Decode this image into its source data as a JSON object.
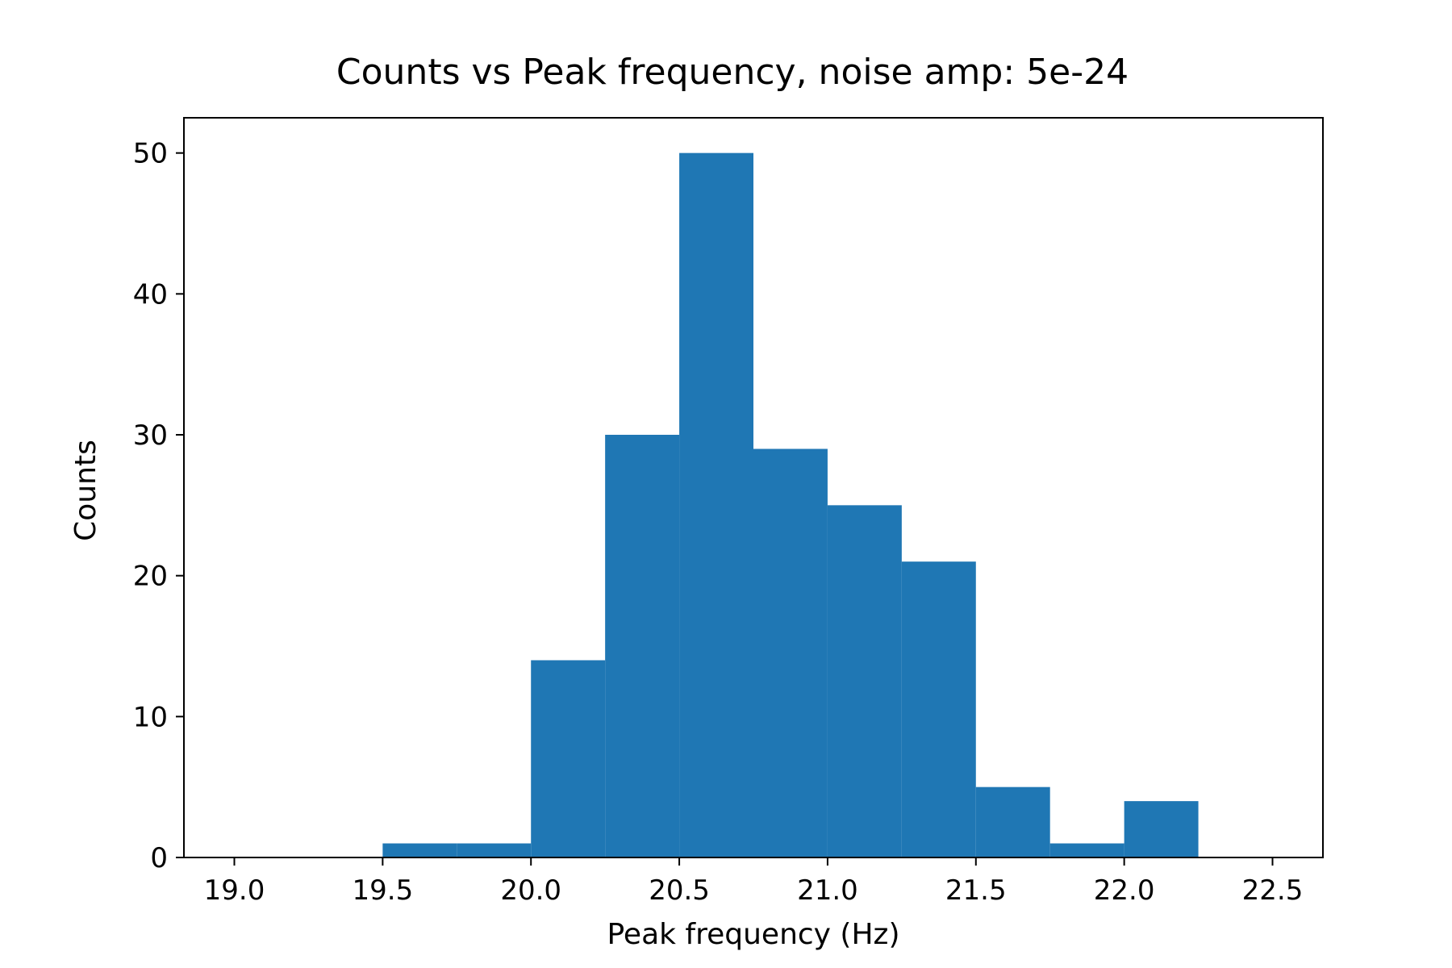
{
  "chart_data": {
    "type": "bar",
    "title": "Counts vs Peak frequency, noise amp: 5e-24",
    "xlabel": "Peak frequency (Hz)",
    "ylabel": "Counts",
    "xlim": [
      18.83,
      22.67
    ],
    "ylim": [
      0,
      52.5
    ],
    "xticks": [
      19.0,
      19.5,
      20.0,
      20.5,
      21.0,
      21.5,
      22.0,
      22.5
    ],
    "xtick_labels": [
      "19.0",
      "19.5",
      "20.0",
      "20.5",
      "21.0",
      "21.5",
      "22.0",
      "22.5"
    ],
    "yticks": [
      0,
      10,
      20,
      30,
      40,
      50
    ],
    "ytick_labels": [
      "0",
      "10",
      "20",
      "30",
      "40",
      "50"
    ],
    "bins": [
      {
        "x0": 19.5,
        "x1": 19.75,
        "count": 1
      },
      {
        "x0": 19.75,
        "x1": 20.0,
        "count": 1
      },
      {
        "x0": 20.0,
        "x1": 20.25,
        "count": 14
      },
      {
        "x0": 20.25,
        "x1": 20.5,
        "count": 30
      },
      {
        "x0": 20.5,
        "x1": 20.75,
        "count": 50
      },
      {
        "x0": 20.75,
        "x1": 21.0,
        "count": 29
      },
      {
        "x0": 21.0,
        "x1": 21.25,
        "count": 25
      },
      {
        "x0": 21.25,
        "x1": 21.5,
        "count": 21
      },
      {
        "x0": 21.5,
        "x1": 21.75,
        "count": 5
      },
      {
        "x0": 21.75,
        "x1": 22.0,
        "count": 1
      },
      {
        "x0": 22.0,
        "x1": 22.25,
        "count": 4
      }
    ],
    "bar_color": "#1f77b4",
    "grid": false,
    "legend": "none"
  }
}
